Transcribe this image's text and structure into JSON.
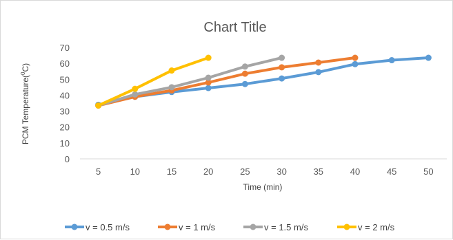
{
  "chart_data": {
    "type": "line",
    "title": "Chart Title",
    "xlabel": "Time (min)",
    "ylabel": "PCM Temperature(",
    "ylabel_sup": "0",
    "ylabel_tail": "C)",
    "x_ticks": [
      5,
      10,
      15,
      20,
      25,
      30,
      35,
      40,
      45,
      50
    ],
    "y_ticks": [
      0,
      10,
      20,
      30,
      40,
      50,
      60,
      70
    ],
    "ylim": [
      0,
      70
    ],
    "grid": false,
    "legend_position": "bottom",
    "series": [
      {
        "name": "v = 0.5 m/s",
        "color": "#5b9bd5",
        "x": [
          5,
          10,
          15,
          20,
          25,
          30,
          35,
          40,
          45,
          50
        ],
        "y": [
          34,
          39,
          42,
          44.5,
          47,
          50.5,
          54.5,
          59.5,
          62,
          63.5
        ]
      },
      {
        "name": "v = 1 m/s",
        "color": "#ed7d31",
        "x": [
          5,
          10,
          15,
          20,
          25,
          30,
          35,
          40
        ],
        "y": [
          33.5,
          39,
          43,
          48,
          53.5,
          57.5,
          60.5,
          63.5
        ]
      },
      {
        "name": "v = 1.5 m/s",
        "color": "#a5a5a5",
        "x": [
          5,
          10,
          15,
          20,
          25,
          30
        ],
        "y": [
          33.5,
          40.5,
          45,
          51,
          58,
          63.5
        ]
      },
      {
        "name": "v = 2 m/s",
        "color": "#ffc000",
        "x": [
          5,
          10,
          15,
          20
        ],
        "y": [
          33.5,
          44,
          55.5,
          63.5
        ]
      }
    ]
  }
}
